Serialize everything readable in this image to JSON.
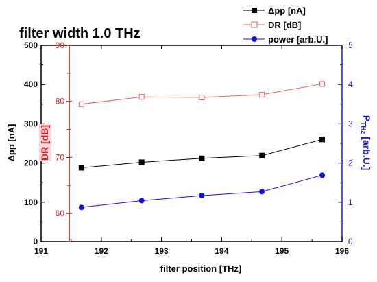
{
  "chart_data": {
    "type": "line",
    "title": "filter width 1.0 THz",
    "xlabel": "filter position [THz]",
    "ylabel_left": "Δpp [nA]",
    "ylabel_right_main": "P",
    "ylabel_right_sub": "THz",
    "ylabel_right_unit": " [arb.U.]",
    "ylabel_inner": "DR [dB]",
    "xlim": [
      191,
      196
    ],
    "ylim_left": [
      0,
      500
    ],
    "ylim_right": [
      0,
      5
    ],
    "ylim_inner": [
      55,
      90
    ],
    "xticks": [
      "191",
      "192",
      "193",
      "194",
      "195",
      "196"
    ],
    "yticks_left": [
      "0",
      "100",
      "200",
      "300",
      "400",
      "500"
    ],
    "yticks_right": [
      "0",
      "1",
      "2",
      "3",
      "4",
      "5"
    ],
    "yticks_inner": [
      "60",
      "70",
      "80",
      "90"
    ],
    "x": [
      191.67,
      192.67,
      193.67,
      194.67,
      195.67
    ],
    "series": [
      {
        "name": "Δpp [nA]",
        "axis": "left",
        "color": "#000000",
        "marker": "square-filled",
        "values": [
          188,
          202,
          212,
          219,
          260
        ]
      },
      {
        "name": "DR [dB]",
        "axis": "inner",
        "color": "#f06060",
        "marker": "square-open",
        "values": [
          79.5,
          80.8,
          80.7,
          81.2,
          83.1
        ]
      },
      {
        "name": "power [arb.U.]",
        "axis": "right",
        "color": "#1010e0",
        "marker": "circle-filled",
        "values": [
          0.87,
          1.04,
          1.17,
          1.27,
          1.69
        ]
      }
    ],
    "legend_position": "top-right",
    "grid": false
  }
}
